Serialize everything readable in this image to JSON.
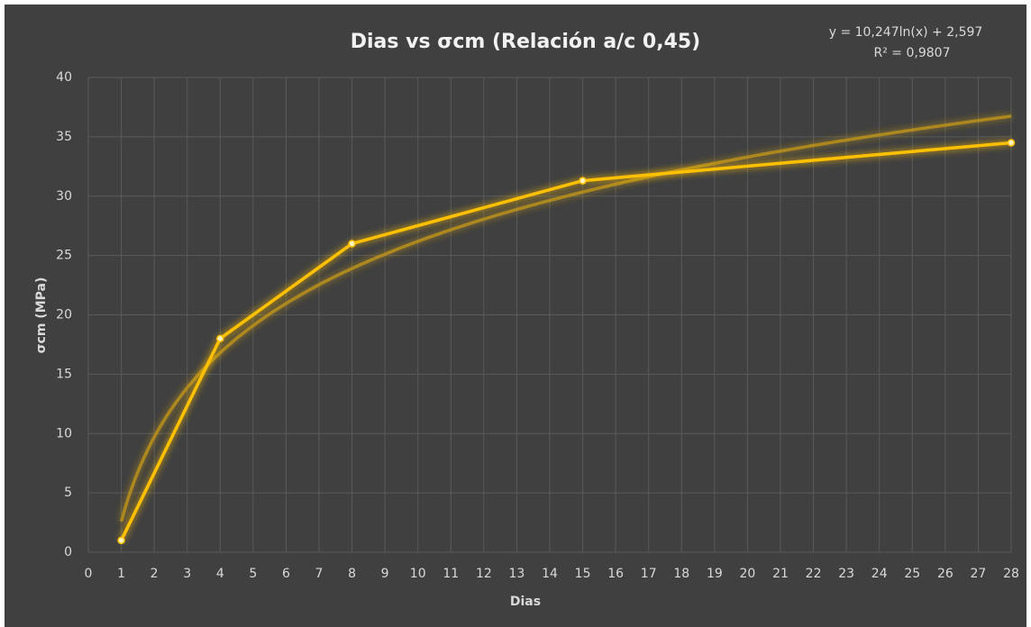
{
  "chart_data": {
    "type": "line",
    "title": "Dias vs σcm (Relación a/c 0,45)",
    "x_label": "Dias",
    "y_label": "σcm (MPa)",
    "x": [
      1,
      4,
      8,
      15,
      28
    ],
    "values": [
      1,
      18,
      26,
      31.3,
      34.5
    ],
    "color": "#ffc000",
    "trendline": {
      "kind": "log",
      "a": 10.247,
      "b": 2.597,
      "color": "#b8901a",
      "equation": "y = 10,247ln(x) + 2,597",
      "r2": "R² = 0,9807"
    },
    "xlim": [
      0,
      28
    ],
    "xticks": [
      0,
      1,
      2,
      3,
      4,
      5,
      6,
      7,
      8,
      9,
      10,
      11,
      12,
      13,
      14,
      15,
      16,
      17,
      18,
      19,
      20,
      21,
      22,
      23,
      24,
      25,
      26,
      27,
      28
    ],
    "ylim": [
      0,
      40
    ],
    "yticks": [
      0,
      5,
      10,
      15,
      20,
      25,
      30,
      35,
      40
    ],
    "grid": true
  }
}
